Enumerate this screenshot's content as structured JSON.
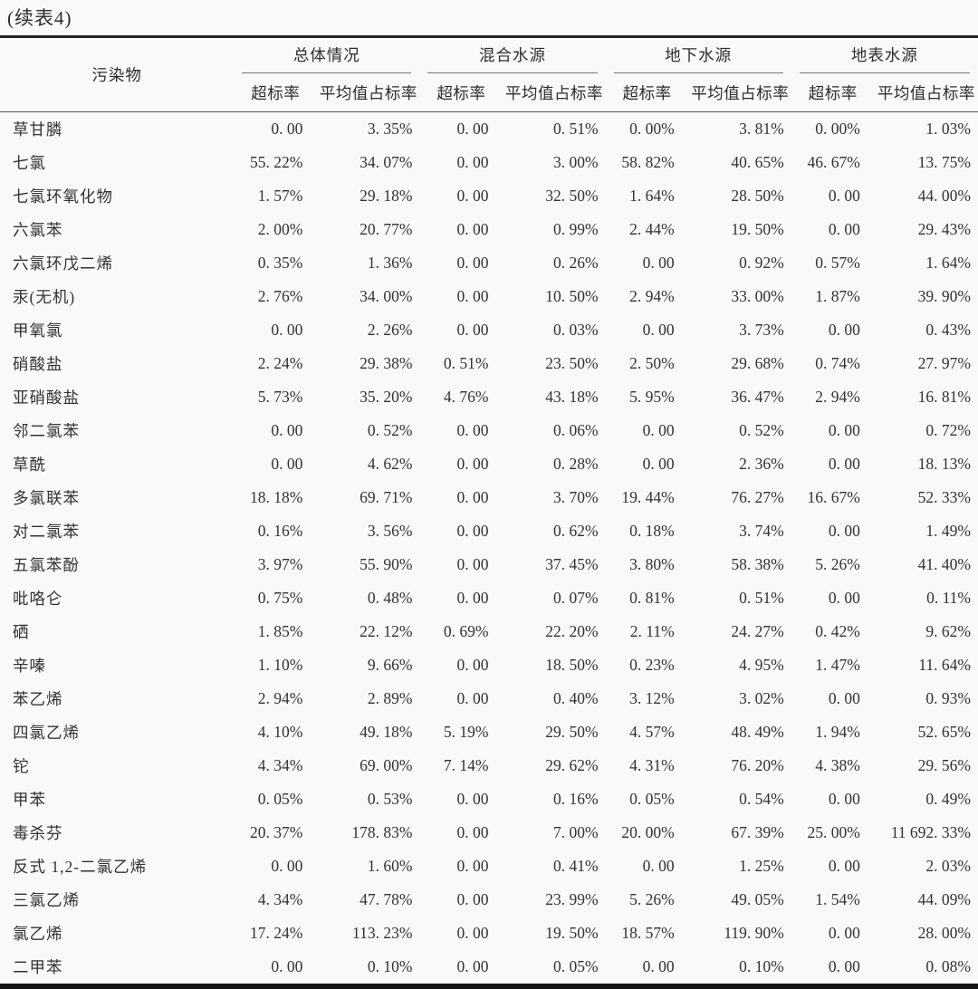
{
  "title": "(续表4)",
  "table": {
    "pollutant_header": "污染物",
    "groups": [
      {
        "key": "overall",
        "label": "总体情况"
      },
      {
        "key": "mixed",
        "label": "混合水源"
      },
      {
        "key": "ground",
        "label": "地下水源"
      },
      {
        "key": "surface",
        "label": "地表水源"
      }
    ],
    "sub_headers": [
      "超标率",
      "平均值占标率"
    ],
    "rows": [
      {
        "name": "草甘膦",
        "values": [
          "0. 00",
          "3. 35%",
          "0. 00",
          "0. 51%",
          "0. 00%",
          "3. 81%",
          "0. 00%",
          "1. 03%"
        ]
      },
      {
        "name": "七氯",
        "values": [
          "55. 22%",
          "34. 07%",
          "0. 00",
          "3. 00%",
          "58. 82%",
          "40. 65%",
          "46. 67%",
          "13. 75%"
        ]
      },
      {
        "name": "七氯环氧化物",
        "values": [
          "1. 57%",
          "29. 18%",
          "0. 00",
          "32. 50%",
          "1. 64%",
          "28. 50%",
          "0. 00",
          "44. 00%"
        ]
      },
      {
        "name": "六氯苯",
        "values": [
          "2. 00%",
          "20. 77%",
          "0. 00",
          "0. 99%",
          "2. 44%",
          "19. 50%",
          "0. 00",
          "29. 43%"
        ]
      },
      {
        "name": "六氯环戊二烯",
        "values": [
          "0. 35%",
          "1. 36%",
          "0. 00",
          "0. 26%",
          "0. 00",
          "0. 92%",
          "0. 57%",
          "1. 64%"
        ]
      },
      {
        "name": "汞(无机)",
        "values": [
          "2. 76%",
          "34. 00%",
          "0. 00",
          "10. 50%",
          "2. 94%",
          "33. 00%",
          "1. 87%",
          "39. 90%"
        ]
      },
      {
        "name": "甲氧氯",
        "values": [
          "0. 00",
          "2. 26%",
          "0. 00",
          "0. 03%",
          "0. 00",
          "3. 73%",
          "0. 00",
          "0. 43%"
        ]
      },
      {
        "name": "硝酸盐",
        "values": [
          "2. 24%",
          "29. 38%",
          "0. 51%",
          "23. 50%",
          "2. 50%",
          "29. 68%",
          "0. 74%",
          "27. 97%"
        ]
      },
      {
        "name": "亚硝酸盐",
        "values": [
          "5. 73%",
          "35. 20%",
          "4. 76%",
          "43. 18%",
          "5. 95%",
          "36. 47%",
          "2. 94%",
          "16. 81%"
        ]
      },
      {
        "name": "邻二氯苯",
        "values": [
          "0. 00",
          "0. 52%",
          "0. 00",
          "0. 06%",
          "0. 00",
          "0. 52%",
          "0. 00",
          "0. 72%"
        ]
      },
      {
        "name": "草酰",
        "values": [
          "0. 00",
          "4. 62%",
          "0. 00",
          "0. 28%",
          "0. 00",
          "2. 36%",
          "0. 00",
          "18. 13%"
        ]
      },
      {
        "name": "多氯联苯",
        "values": [
          "18. 18%",
          "69. 71%",
          "0. 00",
          "3. 70%",
          "19. 44%",
          "76. 27%",
          "16. 67%",
          "52. 33%"
        ]
      },
      {
        "name": "对二氯苯",
        "values": [
          "0. 16%",
          "3. 56%",
          "0. 00",
          "0. 62%",
          "0. 18%",
          "3. 74%",
          "0. 00",
          "1. 49%"
        ]
      },
      {
        "name": "五氯苯酚",
        "values": [
          "3. 97%",
          "55. 90%",
          "0. 00",
          "37. 45%",
          "3. 80%",
          "58. 38%",
          "5. 26%",
          "41. 40%"
        ]
      },
      {
        "name": "吡咯仑",
        "values": [
          "0. 75%",
          "0. 48%",
          "0. 00",
          "0. 07%",
          "0. 81%",
          "0. 51%",
          "0. 00",
          "0. 11%"
        ]
      },
      {
        "name": "硒",
        "values": [
          "1. 85%",
          "22. 12%",
          "0. 69%",
          "22. 20%",
          "2. 11%",
          "24. 27%",
          "0. 42%",
          "9. 62%"
        ]
      },
      {
        "name": "辛嗪",
        "values": [
          "1. 10%",
          "9. 66%",
          "0. 00",
          "18. 50%",
          "0. 23%",
          "4. 95%",
          "1. 47%",
          "11. 64%"
        ]
      },
      {
        "name": "苯乙烯",
        "values": [
          "2. 94%",
          "2. 89%",
          "0. 00",
          "0. 40%",
          "3. 12%",
          "3. 02%",
          "0. 00",
          "0. 93%"
        ]
      },
      {
        "name": "四氯乙烯",
        "values": [
          "4. 10%",
          "49. 18%",
          "5. 19%",
          "29. 50%",
          "4. 57%",
          "48. 49%",
          "1. 94%",
          "52. 65%"
        ]
      },
      {
        "name": "铊",
        "values": [
          "4. 34%",
          "69. 00%",
          "7. 14%",
          "29. 62%",
          "4. 31%",
          "76. 20%",
          "4. 38%",
          "29. 56%"
        ]
      },
      {
        "name": "甲苯",
        "values": [
          "0. 05%",
          "0. 53%",
          "0. 00",
          "0. 16%",
          "0. 05%",
          "0. 54%",
          "0. 00",
          "0. 49%"
        ]
      },
      {
        "name": "毒杀芬",
        "values": [
          "20. 37%",
          "178. 83%",
          "0. 00",
          "7. 00%",
          "20. 00%",
          "67. 39%",
          "25. 00%",
          "11 692. 33%"
        ]
      },
      {
        "name": "反式 1,2-二氯乙烯",
        "values": [
          "0. 00",
          "1. 60%",
          "0. 00",
          "0. 41%",
          "0. 00",
          "1. 25%",
          "0. 00",
          "2. 03%"
        ]
      },
      {
        "name": "三氯乙烯",
        "values": [
          "4. 34%",
          "47. 78%",
          "0. 00",
          "23. 99%",
          "5. 26%",
          "49. 05%",
          "1. 54%",
          "44. 09%"
        ]
      },
      {
        "name": "氯乙烯",
        "values": [
          "17. 24%",
          "113. 23%",
          "0. 00",
          "19. 50%",
          "18. 57%",
          "119. 90%",
          "0. 00",
          "28. 00%"
        ]
      },
      {
        "name": "二甲苯",
        "values": [
          "0. 00",
          "0. 10%",
          "0. 00",
          "0. 05%",
          "0. 00",
          "0. 10%",
          "0. 00",
          "0. 08%"
        ]
      }
    ]
  }
}
